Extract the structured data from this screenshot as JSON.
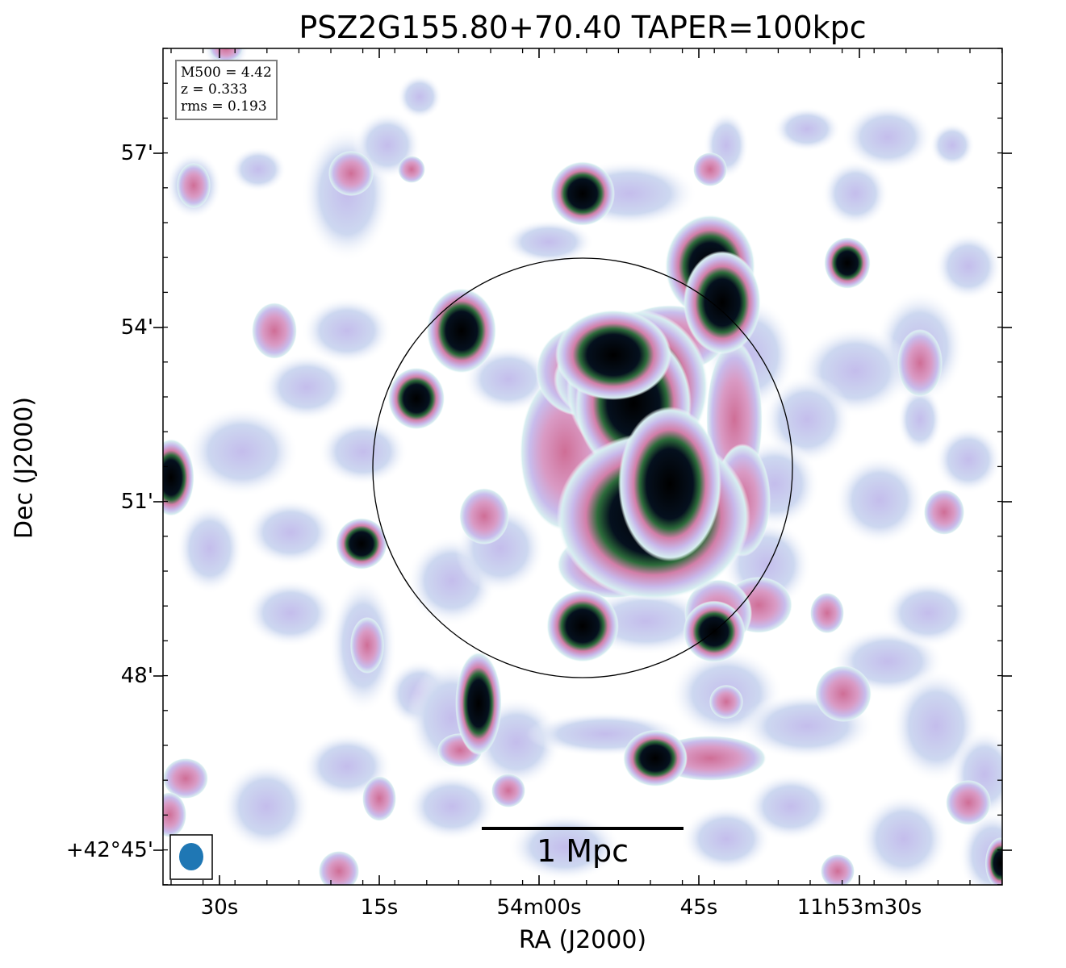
{
  "title": "PSZ2G155.80+70.40 TAPER=100kpc",
  "info_box": {
    "m500": "M500 = 4.42",
    "z": "z = 0.333",
    "rms": "rms = 0.193"
  },
  "scale_bar": {
    "label": "1 Mpc"
  },
  "chart_data": {
    "type": "heatmap",
    "title": "PSZ2G155.80+70.40 TAPER=100kpc",
    "xlabel": "RA (J2000)",
    "ylabel": "Dec (J2000)",
    "xticks": [
      "30s",
      "15s",
      "54m00s",
      "45s",
      "11h53m30s"
    ],
    "yticks": [
      "57'",
      "54'",
      "51'",
      "48'",
      "+42°45'"
    ],
    "colormap": "cubehelix-like (white-cyan-lavender-pink-green-black)",
    "grid": false
  }
}
